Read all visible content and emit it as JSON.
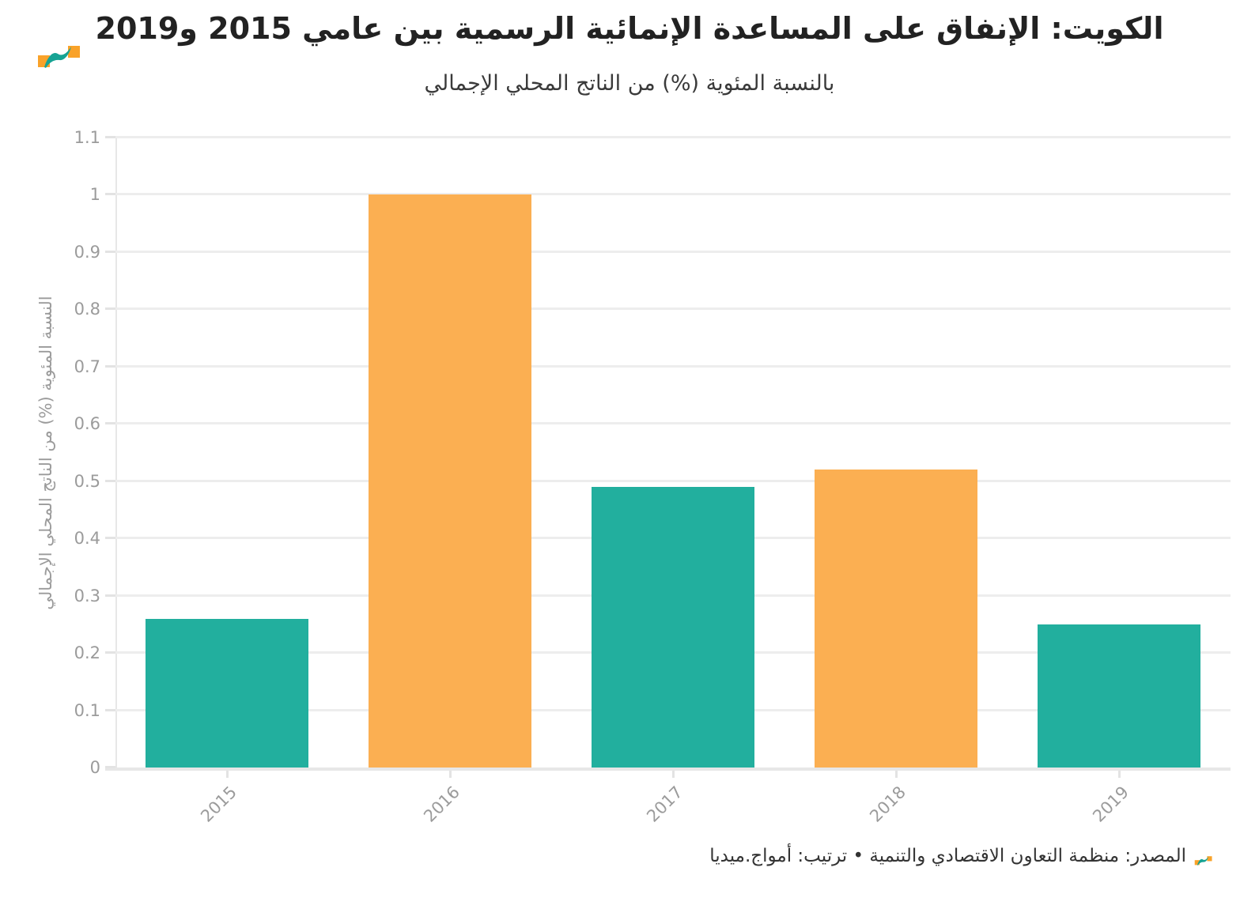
{
  "header": {
    "title": "الكويت: الإنفاق على المساعدة الإنمائية الرسمية بين عامي 2015 و2019",
    "subtitle": "بالنسبة المئوية (%) من الناتج المحلي الإجمالي"
  },
  "logo": {
    "orange_hex": "#F9A229",
    "teal_hex": "#16A394"
  },
  "chart_data": {
    "type": "bar",
    "title": "الكويت: الإنفاق على المساعدة الإنمائية الرسمية بين عامي 2015 و2019",
    "subtitle": "بالنسبة المئوية (%) من الناتج المحلي الإجمالي",
    "categories": [
      "2015",
      "2016",
      "2017",
      "2018",
      "2019"
    ],
    "values": [
      0.26,
      1.0,
      0.49,
      0.52,
      0.25
    ],
    "bar_colors": [
      "#1BAC9B",
      "#FBAC4C",
      "#1BAC9B",
      "#FBAC4C",
      "#1BAC9B"
    ],
    "xlabel": "",
    "ylabel": "النسبة المئوية (%) من الناتج المحلي الإجمالي",
    "ylim": [
      0,
      1.1
    ],
    "ytick_step": 0.1,
    "grid": "horizontal",
    "legend": "none",
    "x_label_rotation": -45
  },
  "footer": {
    "source": "المصدر: منظمة التعاون الاقتصادي والتنمية • ترتيب: أمواج.ميديا"
  },
  "colors": {
    "teal": "#1BAC9B",
    "orange": "#FBAC4C",
    "gridline": "#ededed",
    "axis_line": "#e7e7e7",
    "tick_text": "#9b9b9b",
    "title_text": "#222222",
    "subtitle_text": "#3a3a3a",
    "footer_text": "#333333",
    "background": "#ffffff"
  }
}
